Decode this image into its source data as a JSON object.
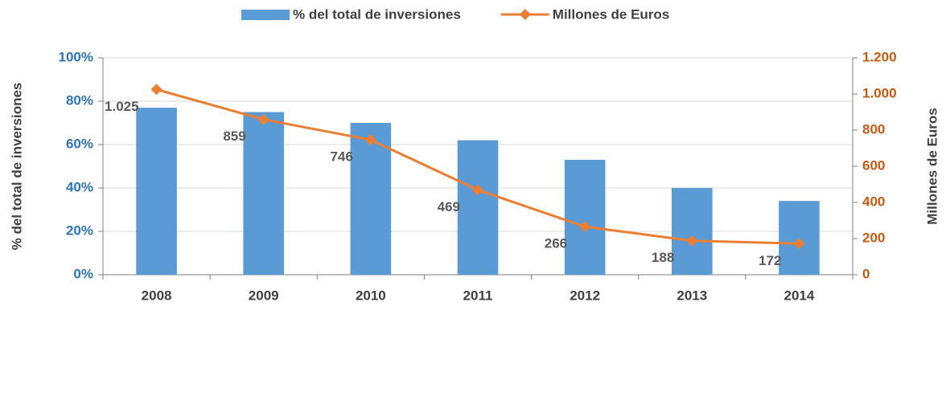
{
  "chart_data": {
    "type": "combo",
    "categories": [
      "2008",
      "2009",
      "2010",
      "2011",
      "2012",
      "2013",
      "2014"
    ],
    "series": [
      {
        "name": "% del total de inversiones",
        "type": "bar",
        "color": "#5b9bd5",
        "values": [
          77,
          75,
          70,
          62,
          53,
          40,
          34
        ]
      },
      {
        "name": "Millones de Euros",
        "type": "line",
        "axis": "y2",
        "color": "#ed7d31",
        "values": [
          1025,
          859,
          746,
          469,
          266,
          188,
          172
        ],
        "value_labels": [
          "1.025",
          "859",
          "746",
          "469",
          "266",
          "188",
          "172"
        ]
      }
    ],
    "ylabel": "% del total de inversiones",
    "y2label": "Millones de Euros",
    "ylim": [
      0,
      100
    ],
    "yticks": [
      {
        "value": 0,
        "label": "0%"
      },
      {
        "value": 20,
        "label": "20%"
      },
      {
        "value": 40,
        "label": "40%"
      },
      {
        "value": 60,
        "label": "60%"
      },
      {
        "value": 80,
        "label": "80%"
      },
      {
        "value": 100,
        "label": "100%"
      }
    ],
    "y2lim": [
      0,
      1200
    ],
    "y2ticks": [
      0,
      200,
      400,
      600,
      800,
      {
        "value": 1000,
        "label": "1.000"
      },
      {
        "value": 1200,
        "label": "1.200"
      }
    ],
    "grid": true,
    "legend": "top"
  }
}
